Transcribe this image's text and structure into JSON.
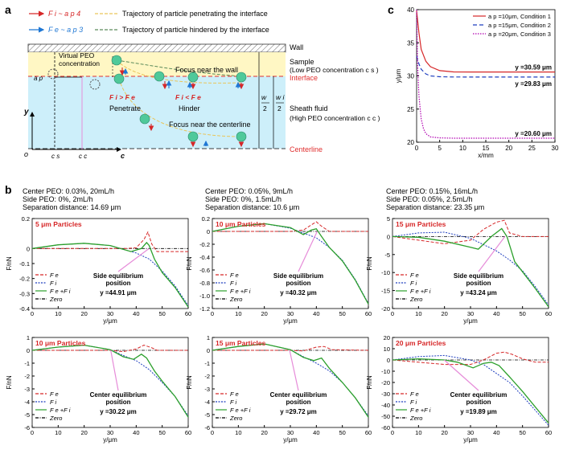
{
  "panel_labels": {
    "a": "a",
    "b": "b",
    "c": "c"
  },
  "colors": {
    "fe": "#d62728",
    "fi": "#1f3fbf",
    "sum": "#2ca02c",
    "zero": "#000000",
    "pink": "#e68cd9",
    "cond1": "#d62728",
    "cond2": "#1f3fbf",
    "cond3": "#b000b0",
    "sample": "#fff7c4",
    "sheath": "#cdeffa",
    "particle": "#4fc99a",
    "interface": "#e03030"
  },
  "schematic": {
    "legend": [
      {
        "symbol": "F i ~ a p 4",
        "text": "Trajectory of particle penetrating the interface"
      },
      {
        "symbol": "F e ~ a p 3",
        "text": "Trajectory of particle hindered by the interface"
      }
    ],
    "wall": "Wall",
    "sample": "Sample",
    "sample_sub": "(Low PEO concentration c s )",
    "interface": "Interface",
    "sheath": "Sheath fluid",
    "sheath_sub": "(High PEO concentration c c )",
    "centerline": "Centerline",
    "virtual": "Virtual PEO",
    "virtual2": "concentration",
    "focus_wall": "Focus near the wall",
    "focus_center": "Focus near the centerline",
    "penetrate": "Penetrate",
    "hinder": "Hinder",
    "fi_gt_fe": "F i > F e",
    "fi_lt_fe": "F i < F e",
    "ap": "a p",
    "y": "y",
    "o": "o",
    "c": "c",
    "cs": "c s",
    "cc": "c c",
    "w_half": "w",
    "w_den": "2",
    "wi_half": "w i",
    "wi_den": "2"
  },
  "panel_c": {
    "xlabel": "x/mm",
    "ylabel": "y/μm",
    "xlim": [
      0,
      30
    ],
    "ylim": [
      20,
      40
    ],
    "xticks": [
      "0",
      "5",
      "10",
      "15",
      "20",
      "25",
      "30"
    ],
    "yticks": [
      "20",
      "25",
      "30",
      "35",
      "40"
    ],
    "series": [
      {
        "name": "a p =10μm, Condition 1",
        "style": "solid",
        "x": [
          0,
          0.5,
          1,
          2,
          3,
          5,
          8,
          12,
          20,
          30
        ],
        "y": [
          39.8,
          36.5,
          34.0,
          32.2,
          31.4,
          30.8,
          30.6,
          30.59,
          30.59,
          30.59
        ],
        "final": "y =30.59 μm"
      },
      {
        "name": "a p =15μm, Condition 2",
        "style": "dashed",
        "x": [
          0,
          0.5,
          1,
          2,
          3,
          5,
          8,
          12,
          20,
          30
        ],
        "y": [
          33.0,
          31.8,
          31.0,
          30.3,
          30.0,
          29.88,
          29.84,
          29.83,
          29.83,
          29.83
        ],
        "final": "y =29.83 μm"
      },
      {
        "name": "a p =20μm, Condition 3",
        "style": "dotted",
        "x": [
          0,
          0.2,
          0.5,
          1,
          1.5,
          2,
          3,
          5,
          8,
          30
        ],
        "y": [
          40.0,
          32.0,
          27.0,
          23.5,
          22.0,
          21.3,
          20.8,
          20.65,
          20.6,
          20.6
        ],
        "final": "y =20.60 μm"
      }
    ]
  },
  "panel_b": {
    "columns": [
      {
        "info": [
          "Center PEO: 0.03%, 20mL/h",
          "Side PEO: 0%, 2mL/h",
          "Separation distance: 14.69 μm"
        ]
      },
      {
        "info": [
          "Center PEO: 0.05%, 9mL/h",
          "Side PEO: 0%, 1.5mL/h",
          "Separation distance: 10.6 μm"
        ]
      },
      {
        "info": [
          "Center PEO: 0.15%, 16mL/h",
          "Side PEO: 0.05%, 2.5mL/h",
          "Separation distance: 23.35 μm"
        ]
      }
    ],
    "legend": {
      "fe": "F e",
      "fi": "F i",
      "sum": "F e +F i",
      "zero": "Zero"
    },
    "xlabel": "y/μm",
    "ylabel": "F/nN",
    "xticks": [
      "0",
      "10",
      "20",
      "30",
      "40",
      "50",
      "60"
    ],
    "charts": [
      {
        "title": "5 μm Particles",
        "eq_label": "Side equilibrium",
        "eq_label2": "position",
        "eq_value": "y =44.91 μm",
        "eq_x": 44.91,
        "ylim": [
          -0.4,
          0.2
        ],
        "yticks": [
          "0.2",
          "0",
          "-0.1",
          "-0.2",
          "-0.3",
          "-0.4"
        ],
        "ytick_vals": [
          0.2,
          0,
          -0.1,
          -0.2,
          -0.3,
          -0.4
        ],
        "fe": [
          [
            0,
            0
          ],
          [
            36,
            0
          ],
          [
            40,
            0.005
          ],
          [
            43,
            0.06
          ],
          [
            44.5,
            0.11
          ],
          [
            46,
            0.03
          ],
          [
            48,
            -0.02
          ],
          [
            60,
            -0.02
          ]
        ],
        "fi": [
          [
            0,
            0
          ],
          [
            10,
            0.025
          ],
          [
            20,
            0.035
          ],
          [
            30,
            0.02
          ],
          [
            40,
            -0.03
          ],
          [
            45,
            -0.07
          ],
          [
            50,
            -0.15
          ],
          [
            55,
            -0.25
          ],
          [
            60,
            -0.38
          ]
        ],
        "sum": [
          [
            0,
            0
          ],
          [
            10,
            0.025
          ],
          [
            20,
            0.035
          ],
          [
            30,
            0.02
          ],
          [
            38,
            -0.02
          ],
          [
            42,
            0.0
          ],
          [
            44,
            0.04
          ],
          [
            45,
            0.02
          ],
          [
            47,
            -0.07
          ],
          [
            50,
            -0.16
          ],
          [
            55,
            -0.26
          ],
          [
            60,
            -0.39
          ]
        ]
      },
      {
        "title": "10 μm Particles",
        "eq_label": "Side equilibrium",
        "eq_label2": "position",
        "eq_value": "y =40.32 μm",
        "eq_x": 40.32,
        "ylim": [
          -1.2,
          0.2
        ],
        "yticks": [
          "0.2",
          "0",
          "-0.2",
          "-0.4",
          "-0.6",
          "-0.8",
          "-1.0",
          "-1.2"
        ],
        "ytick_vals": [
          0.2,
          0,
          -0.2,
          -0.4,
          -0.6,
          -0.8,
          -1.0,
          -1.2
        ],
        "fe": [
          [
            0,
            0
          ],
          [
            30,
            0
          ],
          [
            35,
            0.02
          ],
          [
            38,
            0.1
          ],
          [
            40,
            0.15
          ],
          [
            42,
            0.08
          ],
          [
            45,
            0.0
          ],
          [
            60,
            0.0
          ]
        ],
        "fi": [
          [
            0,
            0
          ],
          [
            10,
            0.08
          ],
          [
            20,
            0.12
          ],
          [
            30,
            0.05
          ],
          [
            40,
            -0.1
          ],
          [
            45,
            -0.25
          ],
          [
            50,
            -0.45
          ],
          [
            55,
            -0.75
          ],
          [
            60,
            -1.12
          ]
        ],
        "sum": [
          [
            0,
            0
          ],
          [
            10,
            0.08
          ],
          [
            20,
            0.12
          ],
          [
            30,
            0.06
          ],
          [
            35,
            -0.05
          ],
          [
            38,
            0.02
          ],
          [
            40,
            0.04
          ],
          [
            42,
            -0.08
          ],
          [
            45,
            -0.25
          ],
          [
            50,
            -0.46
          ],
          [
            55,
            -0.76
          ],
          [
            60,
            -1.13
          ]
        ]
      },
      {
        "title": "15 μm Particles",
        "eq_label": "Side equilibrium",
        "eq_label2": "position",
        "eq_value": "y =43.24 μm",
        "eq_x": 43.24,
        "ylim": [
          -20,
          5
        ],
        "yticks": [
          "5",
          "0",
          "-5",
          "-10",
          "-15",
          "-20"
        ],
        "ytick_vals": [
          5,
          0,
          -5,
          -10,
          -15,
          -20
        ],
        "fe": [
          [
            0,
            0
          ],
          [
            10,
            -1
          ],
          [
            20,
            -2
          ],
          [
            30,
            -1
          ],
          [
            35,
            2
          ],
          [
            40,
            4
          ],
          [
            43,
            4.5
          ],
          [
            45,
            1
          ],
          [
            50,
            0
          ],
          [
            60,
            0
          ]
        ],
        "fi": [
          [
            0,
            0
          ],
          [
            10,
            1
          ],
          [
            20,
            1.2
          ],
          [
            30,
            -0.5
          ],
          [
            40,
            -4
          ],
          [
            45,
            -6.5
          ],
          [
            50,
            -9.5
          ],
          [
            55,
            -14
          ],
          [
            60,
            -19
          ]
        ],
        "sum": [
          [
            0,
            0
          ],
          [
            10,
            -0.2
          ],
          [
            20,
            -1.3
          ],
          [
            30,
            -3
          ],
          [
            33,
            -3.5
          ],
          [
            38,
            0
          ],
          [
            42,
            2.2
          ],
          [
            44,
            0
          ],
          [
            47,
            -7
          ],
          [
            50,
            -9.8
          ],
          [
            55,
            -14.5
          ],
          [
            60,
            -19.5
          ]
        ]
      },
      {
        "title": "10 μm Particles",
        "eq_label": "Center equilibrium",
        "eq_label2": "position",
        "eq_value": "y =30.22 μm",
        "eq_x": 30.22,
        "ylim": [
          -6,
          1
        ],
        "yticks": [
          "1",
          "0",
          "-1",
          "-2",
          "-3",
          "-4",
          "-5",
          "-6"
        ],
        "ytick_vals": [
          1,
          0,
          -1,
          -2,
          -3,
          -4,
          -5,
          -6
        ],
        "fe": [
          [
            0,
            0
          ],
          [
            30,
            0
          ],
          [
            35,
            -0.1
          ],
          [
            40,
            0.1
          ],
          [
            43,
            0.4
          ],
          [
            46,
            0.2
          ],
          [
            48,
            0
          ],
          [
            60,
            0
          ]
        ],
        "fi": [
          [
            0,
            0
          ],
          [
            10,
            0.25
          ],
          [
            20,
            0.4
          ],
          [
            30,
            0.05
          ],
          [
            35,
            -0.4
          ],
          [
            40,
            -0.8
          ],
          [
            45,
            -1.5
          ],
          [
            50,
            -2.5
          ],
          [
            55,
            -3.6
          ],
          [
            60,
            -5.1
          ]
        ],
        "sum": [
          [
            0,
            0
          ],
          [
            10,
            0.25
          ],
          [
            20,
            0.4
          ],
          [
            30,
            0.05
          ],
          [
            35,
            -0.5
          ],
          [
            39,
            -0.7
          ],
          [
            42,
            -0.3
          ],
          [
            44,
            -0.6
          ],
          [
            47,
            -1.6
          ],
          [
            50,
            -2.4
          ],
          [
            55,
            -3.6
          ],
          [
            60,
            -5.2
          ]
        ]
      },
      {
        "title": "15 μm Particles",
        "eq_label": "Center equilibrium",
        "eq_label2": "position",
        "eq_value": "y =29.72 μm",
        "eq_x": 29.72,
        "ylim": [
          -6,
          1
        ],
        "yticks": [
          "1",
          "0",
          "-1",
          "-2",
          "-3",
          "-4",
          "-5",
          "-6"
        ],
        "ytick_vals": [
          1,
          0,
          -1,
          -2,
          -3,
          -4,
          -5,
          -6
        ],
        "fe": [
          [
            0,
            0
          ],
          [
            30,
            0
          ],
          [
            35,
            -0.05
          ],
          [
            40,
            0.25
          ],
          [
            43,
            0.3
          ],
          [
            46,
            0.05
          ],
          [
            60,
            0
          ]
        ],
        "fi": [
          [
            0,
            0
          ],
          [
            10,
            0.3
          ],
          [
            20,
            0.5
          ],
          [
            30,
            0.05
          ],
          [
            35,
            -0.5
          ],
          [
            40,
            -1.0
          ],
          [
            45,
            -1.6
          ],
          [
            50,
            -2.5
          ],
          [
            55,
            -3.7
          ],
          [
            60,
            -5.1
          ]
        ],
        "sum": [
          [
            0,
            0
          ],
          [
            10,
            0.3
          ],
          [
            20,
            0.5
          ],
          [
            30,
            0.05
          ],
          [
            35,
            -0.55
          ],
          [
            39,
            -0.8
          ],
          [
            42,
            -0.6
          ],
          [
            45,
            -1.4
          ],
          [
            50,
            -2.5
          ],
          [
            55,
            -3.7
          ],
          [
            60,
            -5.2
          ]
        ]
      },
      {
        "title": "20 μm Particles",
        "eq_label": "Center equilibrium",
        "eq_label2": "position",
        "eq_value": "y =19.89 μm",
        "eq_x": 19.89,
        "ylim": [
          -60,
          20
        ],
        "yticks": [
          "20",
          "10",
          "0",
          "-10",
          "-20",
          "-30",
          "-40",
          "-50",
          "-60"
        ],
        "ytick_vals": [
          20,
          10,
          0,
          -10,
          -20,
          -30,
          -40,
          -50,
          -60
        ],
        "fe": [
          [
            0,
            0
          ],
          [
            10,
            -2
          ],
          [
            20,
            -4
          ],
          [
            30,
            -4
          ],
          [
            35,
            0
          ],
          [
            40,
            6
          ],
          [
            43,
            7
          ],
          [
            46,
            5
          ],
          [
            50,
            1
          ],
          [
            55,
            -2
          ],
          [
            60,
            -2
          ]
        ],
        "fi": [
          [
            0,
            0
          ],
          [
            10,
            3
          ],
          [
            20,
            4
          ],
          [
            30,
            0
          ],
          [
            35,
            -4
          ],
          [
            40,
            -12
          ],
          [
            45,
            -20
          ],
          [
            50,
            -32
          ],
          [
            55,
            -45
          ],
          [
            60,
            -58
          ]
        ],
        "sum": [
          [
            0,
            0
          ],
          [
            10,
            1
          ],
          [
            20,
            0
          ],
          [
            25,
            -2
          ],
          [
            31,
            -7
          ],
          [
            35,
            -3
          ],
          [
            38,
            -2
          ],
          [
            41,
            -5
          ],
          [
            45,
            -15
          ],
          [
            50,
            -28
          ],
          [
            55,
            -42
          ],
          [
            60,
            -56
          ]
        ]
      }
    ]
  }
}
